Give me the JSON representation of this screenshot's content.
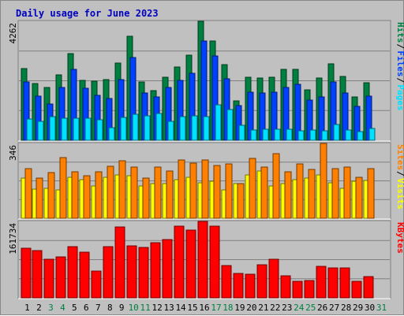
{
  "title": "Daily usage for June 2023",
  "colors": {
    "background": "#c0c0c0",
    "title": "#0000c0",
    "hits": "#008040",
    "files": "#0040ff",
    "pages": "#00e0ff",
    "visits": "#ffff00",
    "sites": "#ff8000",
    "kbytes": "#ff0000",
    "weekend_label": "#008040",
    "weekday_label": "#000000"
  },
  "chart_data": [
    {
      "type": "bar",
      "panel": "top",
      "max_label": "4262",
      "y_max": 4262,
      "categories": [
        "1",
        "2",
        "3",
        "4",
        "5",
        "6",
        "7",
        "8",
        "9",
        "10",
        "11",
        "12",
        "13",
        "14",
        "15",
        "16",
        "17",
        "18",
        "19",
        "20",
        "21",
        "22",
        "23",
        "24",
        "25",
        "26",
        "27",
        "28",
        "29",
        "30",
        "31"
      ],
      "weekend_categories": [
        "3",
        "4",
        "10",
        "11",
        "17",
        "18",
        "24",
        "25",
        "31"
      ],
      "legend": [
        "Hits",
        "Files",
        "Pages"
      ],
      "series": [
        {
          "name": "Hits",
          "values": [
            2580,
            2040,
            1900,
            2340,
            3100,
            2150,
            2120,
            2180,
            2770,
            3730,
            2100,
            1780,
            2250,
            2620,
            3040,
            4262,
            3550,
            2710,
            1400,
            2270,
            2220,
            2270,
            2550,
            2540,
            1820,
            2220,
            2750,
            2300,
            1560,
            2070,
            0
          ]
        },
        {
          "name": "Files",
          "values": [
            2080,
            1590,
            1290,
            1900,
            2530,
            1850,
            1600,
            1500,
            2180,
            2970,
            1700,
            1550,
            1900,
            2150,
            2390,
            3560,
            3020,
            2200,
            1240,
            1720,
            1700,
            1720,
            1900,
            2000,
            1450,
            1550,
            2100,
            1700,
            1220,
            1590,
            0
          ]
        },
        {
          "name": "Pages",
          "values": [
            760,
            680,
            850,
            790,
            780,
            780,
            740,
            440,
            810,
            940,
            880,
            960,
            690,
            860,
            870,
            860,
            1270,
            1110,
            550,
            360,
            390,
            400,
            390,
            340,
            380,
            340,
            560,
            360,
            300,
            430,
            0
          ]
        }
      ]
    },
    {
      "type": "bar",
      "panel": "middle",
      "max_label": "346",
      "y_max": 346,
      "categories": [
        "1",
        "2",
        "3",
        "4",
        "5",
        "6",
        "7",
        "8",
        "9",
        "10",
        "11",
        "12",
        "13",
        "14",
        "15",
        "16",
        "17",
        "18",
        "19",
        "20",
        "21",
        "22",
        "23",
        "24",
        "25",
        "26",
        "27",
        "28",
        "29",
        "30",
        "31"
      ],
      "legend": [
        "Sites",
        "Visits"
      ],
      "series": [
        {
          "name": "Visits",
          "values": [
            185,
            135,
            140,
            130,
            190,
            180,
            150,
            190,
            200,
            195,
            150,
            160,
            160,
            180,
            190,
            165,
            170,
            130,
            160,
            200,
            220,
            150,
            160,
            180,
            185,
            200,
            165,
            140,
            170,
            175,
            0
          ]
        },
        {
          "name": "Sites",
          "values": [
            230,
            185,
            210,
            280,
            215,
            195,
            215,
            240,
            265,
            235,
            185,
            235,
            220,
            270,
            255,
            270,
            245,
            250,
            160,
            275,
            235,
            300,
            215,
            250,
            225,
            346,
            230,
            235,
            190,
            228,
            0
          ]
        }
      ]
    },
    {
      "type": "bar",
      "panel": "bottom",
      "max_label": "161734",
      "y_max": 161734,
      "categories": [
        "1",
        "2",
        "3",
        "4",
        "5",
        "6",
        "7",
        "8",
        "9",
        "10",
        "11",
        "12",
        "13",
        "14",
        "15",
        "16",
        "17",
        "18",
        "19",
        "20",
        "21",
        "22",
        "23",
        "24",
        "25",
        "26",
        "27",
        "28",
        "29",
        "30",
        "31"
      ],
      "legend": [
        "KBytes"
      ],
      "series": [
        {
          "name": "KBytes",
          "values": [
            105000,
            100000,
            81000,
            86000,
            109000,
            96000,
            57000,
            108000,
            150000,
            110000,
            106000,
            117000,
            124000,
            152000,
            144000,
            161734,
            151000,
            68000,
            51000,
            50000,
            70000,
            82000,
            46000,
            35000,
            36000,
            67000,
            63000,
            63000,
            35000,
            45000,
            0
          ]
        }
      ]
    }
  ]
}
